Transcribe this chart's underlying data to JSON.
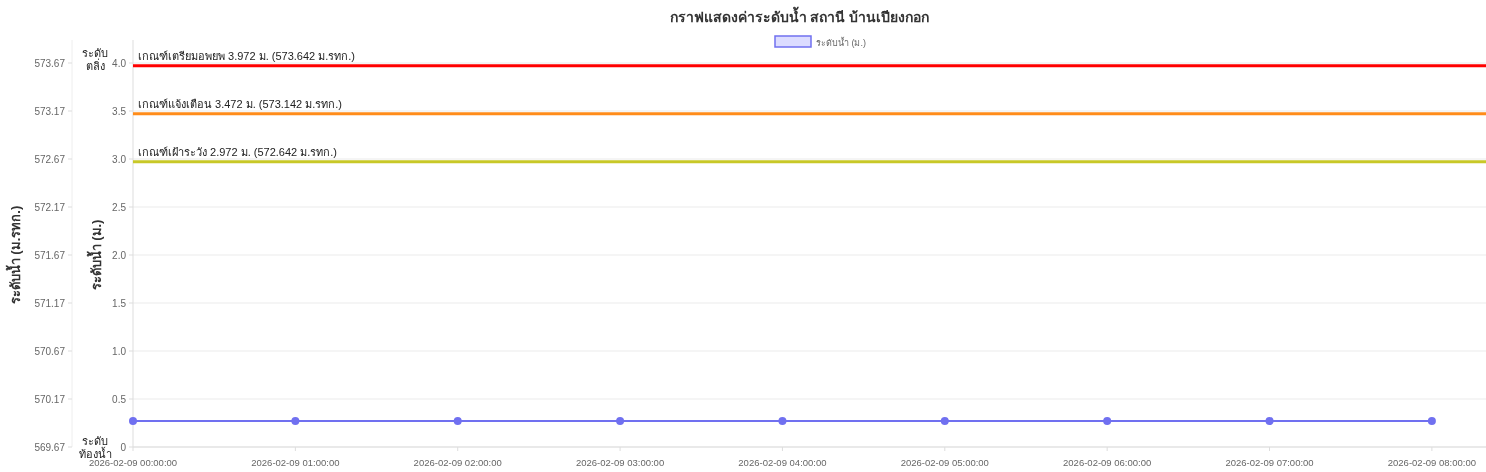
{
  "chart_data": {
    "type": "line",
    "title": "กราฟแสดงค่าระดับน้ำ สถานี บ้านเปียงกอก",
    "ylabel": "ระดับน้ำ (ม.)",
    "y2label": "ระดับน้ำ (ม.รทก.)",
    "x": [
      "2026-02-09T00:00",
      "2026-02-09T01:00",
      "2026-02-09T02:00",
      "2026-02-09T03:00",
      "2026-02-09T04:00",
      "2026-02-09T05:00",
      "2026-02-09T06:00",
      "2026-02-09T07:00",
      "2026-02-09T08:00"
    ],
    "xlim": [
      "2026-02-09T00:00",
      "2026-02-09T08:20"
    ],
    "xticks": [
      {
        "value": "2026-02-09T00:00",
        "label": "2026-02-09 00:00:00"
      },
      {
        "value": "2026-02-09T01:00",
        "label": "2026-02-09 01:00:00"
      },
      {
        "value": "2026-02-09T02:00",
        "label": "2026-02-09 02:00:00"
      },
      {
        "value": "2026-02-09T03:00",
        "label": "2026-02-09 03:00:00"
      },
      {
        "value": "2026-02-09T04:00",
        "label": "2026-02-09 04:00:00"
      },
      {
        "value": "2026-02-09T05:00",
        "label": "2026-02-09 05:00:00"
      },
      {
        "value": "2026-02-09T06:00",
        "label": "2026-02-09 06:00:00"
      },
      {
        "value": "2026-02-09T07:00",
        "label": "2026-02-09 07:00:00"
      },
      {
        "value": "2026-02-09T08:00",
        "label": "2026-02-09 08:00:00"
      }
    ],
    "series": [
      {
        "name": "ระดับน้ำ (ม.)",
        "color": "#7070f0",
        "values": [
          0.27,
          0.27,
          0.27,
          0.27,
          0.27,
          0.27,
          0.27,
          0.27,
          0.27
        ]
      }
    ],
    "ylim": [
      0,
      4
    ],
    "yticks": [
      0,
      0.5,
      {
        "value": 1,
        "label": "1.0"
      },
      1.5,
      {
        "value": 2,
        "label": "2.0"
      },
      2.5,
      {
        "value": 3,
        "label": "3.0"
      },
      3.5,
      {
        "value": 4,
        "label": "4.0"
      }
    ],
    "y2lim": [
      569.67,
      573.67
    ],
    "y2ticks": [
      569.67,
      570.17,
      570.67,
      571.17,
      571.67,
      572.17,
      572.67,
      573.17,
      573.67
    ],
    "ref_lines": [
      {
        "axis": "y",
        "value": 3.972,
        "label": "เกณฑ์เตรียมอพยพ 3.972 ม. (573.642 ม.รทก.)",
        "color": "#ff0000"
      },
      {
        "axis": "y",
        "value": 3.472,
        "label": "เกณฑ์แจ้งเตือน   3.472 ม. (573.142 ม.รทก.)",
        "color": "#ff8c1a"
      },
      {
        "axis": "y",
        "value": 2.972,
        "label": "เกณฑ์เฝ้าระวัง    2.972 ม. (572.642 ม.รทก.)",
        "color": "#c8c828"
      }
    ],
    "annotations": [
      "ระดับ ตลิ่ง",
      "ระดับ ท้องน้ำ"
    ],
    "legend": "top",
    "grid": "y",
    "marker": "circle"
  }
}
